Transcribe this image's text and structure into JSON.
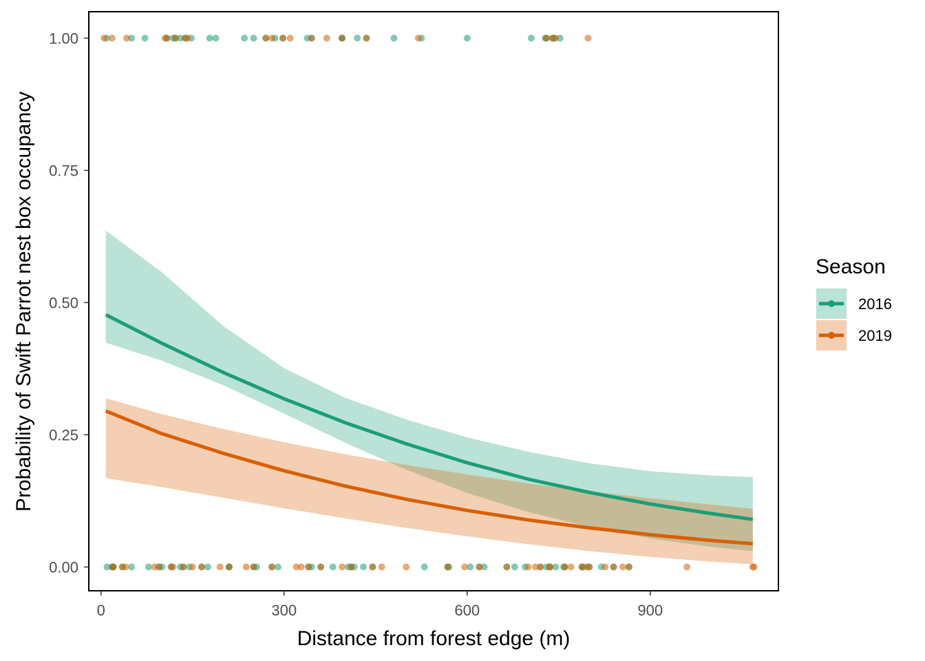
{
  "chart_data": {
    "type": "scatter",
    "title": "",
    "xlabel": "Distance from forest edge (m)",
    "ylabel": "Probability of Swift Parrot nest box occupancy",
    "xlim": [
      -20,
      1110
    ],
    "ylim": [
      -0.045,
      1.05
    ],
    "x_ticks": [
      0,
      300,
      600,
      900
    ],
    "x_tick_labels": [
      "0",
      "300",
      "600",
      "900"
    ],
    "y_ticks": [
      0.0,
      0.25,
      0.5,
      0.75,
      1.0
    ],
    "y_tick_labels": [
      "0.00",
      "0.25",
      "0.50",
      "0.75",
      "1.00"
    ],
    "grid": false,
    "legend": {
      "title": "Season",
      "position": "right",
      "entries": [
        "2016",
        "2019"
      ]
    },
    "series": [
      {
        "name": "2016",
        "color": "#1b9e77",
        "fit_x": [
          8,
          100,
          200,
          300,
          400,
          500,
          600,
          700,
          800,
          900,
          1000,
          1068
        ],
        "fit_y": [
          0.477,
          0.423,
          0.368,
          0.318,
          0.273,
          0.233,
          0.197,
          0.166,
          0.141,
          0.119,
          0.101,
          0.09
        ],
        "ci_lower": [
          0.424,
          0.39,
          0.344,
          0.29,
          0.235,
          0.184,
          0.14,
          0.104,
          0.076,
          0.054,
          0.038,
          0.03
        ],
        "ci_upper": [
          0.636,
          0.557,
          0.456,
          0.376,
          0.32,
          0.279,
          0.245,
          0.218,
          0.196,
          0.181,
          0.173,
          0.17
        ],
        "points_y1": [
          9,
          50,
          72,
          118,
          130,
          148,
          178,
          188,
          235,
          250,
          285,
          338,
          395,
          420,
          480,
          525,
          600,
          705,
          728,
          742,
          752
        ],
        "points_y0": [
          10,
          18,
          50,
          78,
          100,
          130,
          145,
          175,
          210,
          255,
          290,
          345,
          380,
          405,
          415,
          430,
          530,
          570,
          605,
          628,
          678,
          695,
          730,
          745,
          758,
          790,
          820
        ],
        "points_mixed_y1": [
          108,
          122,
          138,
          270,
          298,
          345,
          395,
          435,
          730,
          740
        ],
        "points_mixed_y0": [
          20,
          35,
          95,
          115,
          135,
          165,
          210,
          250,
          280,
          340,
          360,
          410,
          445,
          568,
          620,
          665,
          720,
          735,
          760,
          788,
          800,
          840,
          865
        ]
      },
      {
        "name": "2019",
        "color": "#d95f02",
        "fit_x": [
          8,
          100,
          200,
          300,
          400,
          500,
          600,
          700,
          800,
          900,
          1000,
          1068
        ],
        "fit_y": [
          0.295,
          0.252,
          0.215,
          0.182,
          0.153,
          0.128,
          0.107,
          0.089,
          0.074,
          0.061,
          0.05,
          0.044
        ],
        "ci_lower": [
          0.168,
          0.151,
          0.131,
          0.111,
          0.092,
          0.074,
          0.058,
          0.043,
          0.03,
          0.019,
          0.01,
          0.005
        ],
        "ci_upper": [
          0.319,
          0.289,
          0.261,
          0.236,
          0.213,
          0.193,
          0.175,
          0.158,
          0.143,
          0.13,
          0.118,
          0.11
        ],
        "points_y1": [
          5,
          18,
          42,
          105,
          142,
          280,
          310,
          370,
          520,
          745,
          798
        ],
        "points_y0": [
          20,
          40,
          88,
          118,
          150,
          195,
          238,
          320,
          328,
          395,
          460,
          500,
          596,
          700,
          712,
          736,
          770,
          796,
          826,
          855,
          960,
          1068,
          1070
        ]
      }
    ]
  }
}
